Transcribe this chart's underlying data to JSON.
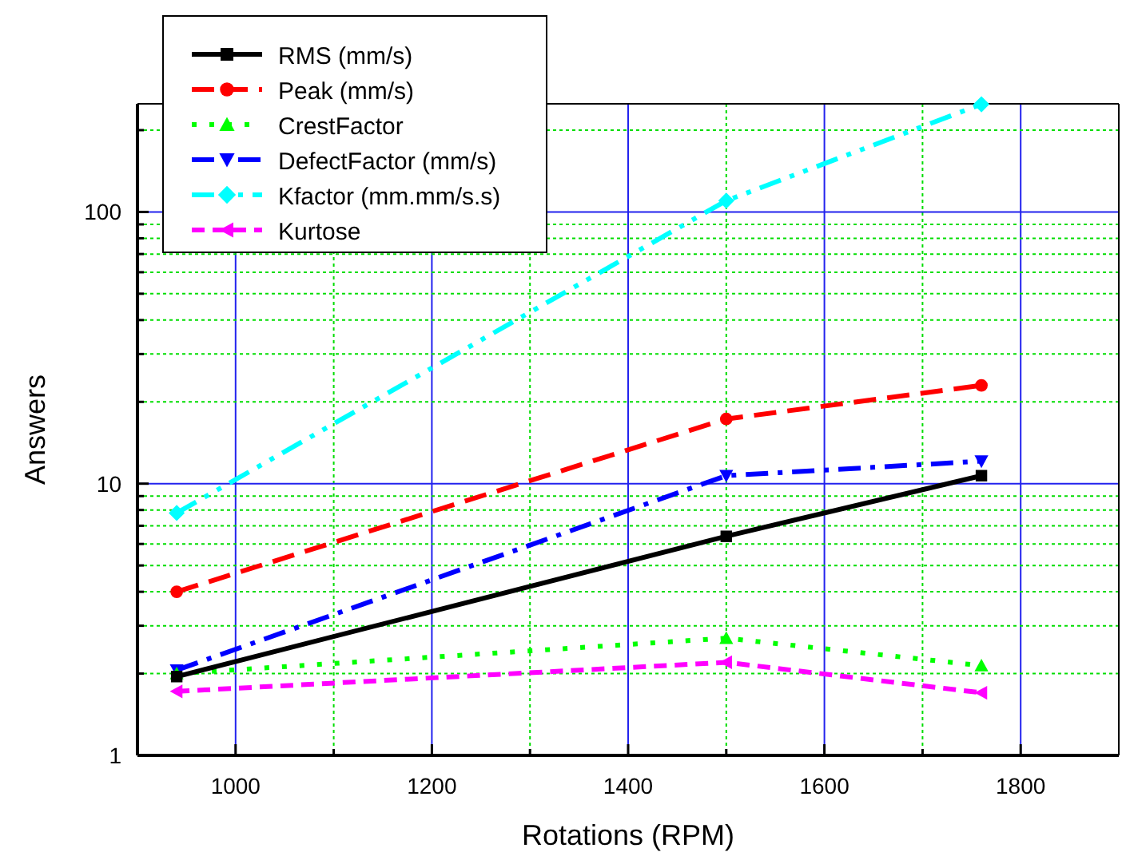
{
  "chart_data": {
    "type": "line",
    "xlabel": "Rotations (RPM)",
    "ylabel": "Answers",
    "log": "y",
    "grid": true,
    "legend": "top left",
    "x": [
      940,
      1500,
      1760
    ],
    "xlim": [
      900,
      1900
    ],
    "xticks": [
      1000,
      {
        "value": 1100,
        "label": null
      },
      1200,
      {
        "value": 1300,
        "label": null
      },
      1400,
      {
        "value": 1500,
        "label": null
      },
      1600,
      {
        "value": 1700,
        "label": null
      },
      1800
    ],
    "ylim": [
      1,
      250
    ],
    "yticks": [
      1,
      {
        "value": 2,
        "label": null
      },
      {
        "value": 3,
        "label": null
      },
      {
        "value": 4,
        "label": null
      },
      {
        "value": 5,
        "label": null
      },
      {
        "value": 6,
        "label": null
      },
      {
        "value": 7,
        "label": null
      },
      {
        "value": 8,
        "label": null
      },
      {
        "value": 9,
        "label": null
      },
      10,
      {
        "value": 20,
        "label": null
      },
      {
        "value": 30,
        "label": null
      },
      {
        "value": 40,
        "label": null
      },
      {
        "value": 50,
        "label": null
      },
      {
        "value": 60,
        "label": null
      },
      {
        "value": 70,
        "label": null
      },
      {
        "value": 80,
        "label": null
      },
      {
        "value": 90,
        "label": null
      },
      100,
      {
        "value": 200,
        "label": null
      }
    ],
    "series": [
      {
        "name": "RMS (mm/s)",
        "color": "#000000",
        "values": [
          1.95,
          6.4,
          10.7
        ],
        "marker": "square",
        "line_style": "solid"
      },
      {
        "name": "Peak (mm/s)",
        "color": "#ff0000",
        "values": [
          4.0,
          17.3,
          23
        ],
        "marker": "circle",
        "line_style": "dashed"
      },
      {
        "name": "CrestFactor",
        "color": "#00ff00",
        "values": [
          2.0,
          2.7,
          2.14
        ],
        "marker": "triangle",
        "line_style": "dotted"
      },
      {
        "name": "DefectFactor (mm/s)",
        "color": "#0000ff",
        "values": [
          2.06,
          10.7,
          12.1
        ],
        "marker": "triangle-down",
        "line_style": "dashdot"
      },
      {
        "name": "Kfactor (mm.mm/s.s)",
        "color": "#00ffff",
        "values": [
          7.8,
          110,
          249
        ],
        "marker": "diamond",
        "line_style": "dashdotdot"
      },
      {
        "name": "Kurtose",
        "color": "#ff00ff",
        "values": [
          1.72,
          2.2,
          1.7
        ],
        "marker": "triangle-left",
        "line_style": "shortdash"
      }
    ]
  }
}
